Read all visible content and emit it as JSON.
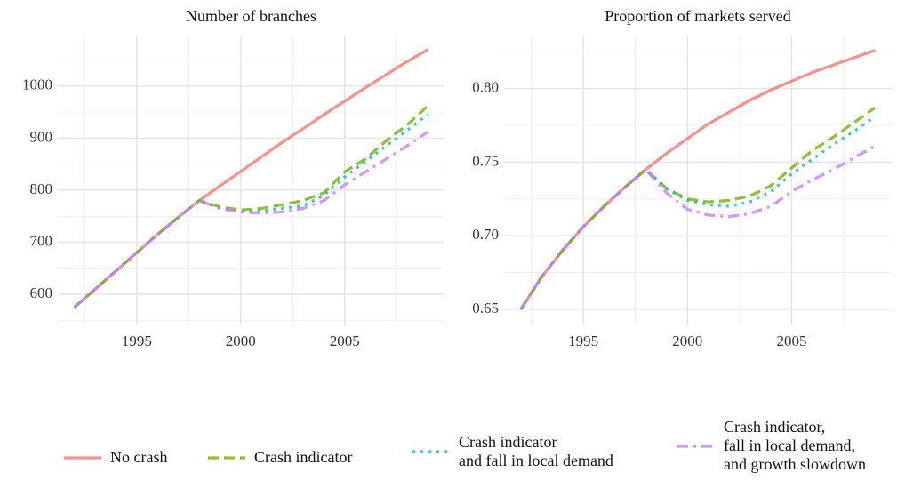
{
  "chart_data": [
    {
      "type": "line",
      "title": "Number of branches",
      "x": [
        1992,
        1993,
        1994,
        1995,
        1996,
        1997,
        1998,
        1999,
        2000,
        2001,
        2002,
        2003,
        2004,
        2005,
        2006,
        2007,
        2008,
        2009
      ],
      "xlim": [
        1991.2,
        2009.8
      ],
      "xticks": [
        1995,
        2000,
        2005
      ],
      "ylim": [
        542,
        1097
      ],
      "yticks": [
        600,
        700,
        800,
        900,
        1000
      ],
      "grid": true,
      "series": [
        {
          "name": "No crash",
          "color": "#F8766D",
          "linestyle": "solid",
          "values": [
            575,
            610,
            645,
            680,
            715,
            748,
            780,
            808,
            836,
            864,
            892,
            918,
            945,
            971,
            997,
            1022,
            1047,
            1070
          ]
        },
        {
          "name": "Crash indicator",
          "color": "#7CAE00",
          "linestyle": "dashed",
          "values": [
            575,
            610,
            645,
            680,
            715,
            748,
            780,
            768,
            762,
            765,
            772,
            780,
            795,
            835,
            860,
            895,
            925,
            962
          ]
        },
        {
          "name": "Crash indicator\nand fall in local demand",
          "color": "#00BFC4",
          "linestyle": "dotted",
          "values": [
            575,
            610,
            645,
            680,
            715,
            748,
            780,
            765,
            758,
            760,
            765,
            770,
            790,
            825,
            855,
            885,
            915,
            945
          ]
        },
        {
          "name": "Crash indicator,\nfall in local demand,\nand growth slowdown",
          "color": "#C77CFF",
          "linestyle": "dotdash",
          "values": [
            575,
            610,
            645,
            680,
            715,
            748,
            780,
            765,
            758,
            756,
            758,
            765,
            780,
            810,
            835,
            860,
            885,
            912
          ]
        }
      ]
    },
    {
      "type": "line",
      "title": "Proportion of markets served",
      "x": [
        1992,
        1993,
        1994,
        1995,
        1996,
        1997,
        1998,
        1999,
        2000,
        2001,
        2002,
        2003,
        2004,
        2005,
        2006,
        2007,
        2008,
        2009
      ],
      "xlim": [
        1991.2,
        2009.8
      ],
      "xticks": [
        1995,
        2000,
        2005
      ],
      "ylim": [
        0.6397,
        0.836
      ],
      "yticks": [
        0.65,
        {
          "value": 0.7,
          "label": "0.70"
        },
        0.75,
        {
          "value": 0.8,
          "label": "0.80"
        }
      ],
      "grid": true,
      "series": [
        {
          "color": "#F8766D",
          "linestyle": "solid",
          "values": [
            0.65,
            0.672,
            0.69,
            0.706,
            0.72,
            0.733,
            0.745,
            0.756,
            0.766,
            0.776,
            0.784,
            0.792,
            0.799,
            0.805,
            0.811,
            0.816,
            0.821,
            0.826
          ]
        },
        {
          "color": "#7CAE00",
          "linestyle": "dashed",
          "values": [
            0.65,
            0.672,
            0.69,
            0.706,
            0.72,
            0.733,
            0.745,
            0.732,
            0.725,
            0.723,
            0.724,
            0.727,
            0.734,
            0.746,
            0.758,
            0.767,
            0.777,
            0.787
          ]
        },
        {
          "color": "#00BFC4",
          "linestyle": "dotted",
          "values": [
            0.65,
            0.672,
            0.69,
            0.706,
            0.72,
            0.733,
            0.745,
            0.732,
            0.724,
            0.721,
            0.72,
            0.723,
            0.73,
            0.742,
            0.752,
            0.762,
            0.771,
            0.781
          ]
        },
        {
          "color": "#C77CFF",
          "linestyle": "dotdash",
          "values": [
            0.65,
            0.672,
            0.69,
            0.706,
            0.72,
            0.733,
            0.745,
            0.729,
            0.718,
            0.714,
            0.713,
            0.715,
            0.72,
            0.73,
            0.738,
            0.745,
            0.753,
            0.761
          ]
        }
      ]
    }
  ]
}
